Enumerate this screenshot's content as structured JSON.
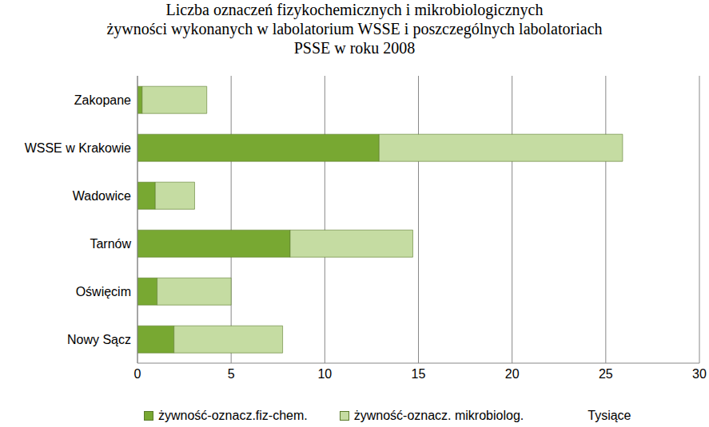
{
  "chart_data": {
    "type": "bar",
    "orientation": "horizontal",
    "stacked": true,
    "title": "Liczba oznaczeń fizykochemicznych i mikrobiologicznych\nżywności wykonanych w labolatorium WSSE i poszczególnych labolatoriach\nPSSE w roku 2008",
    "xlabel": "Tysiące",
    "categories": [
      "Zakopane",
      "WSSE w Krakowie",
      "Wadowice",
      "Tarnów",
      "Oświęcim",
      "Nowy Sącz"
    ],
    "series": [
      {
        "name": "żywność-oznacz.fiz-chem.",
        "color": "#78a832",
        "values": [
          0.25,
          12.9,
          0.95,
          8.15,
          1.05,
          1.95
        ]
      },
      {
        "name": "żywność-oznacz. mikrobiolog.",
        "color": "#c5dca2",
        "values": [
          3.45,
          13.0,
          2.1,
          6.55,
          3.95,
          5.8
        ]
      }
    ],
    "xlim": [
      0,
      30
    ],
    "xticks": [
      0,
      5,
      10,
      15,
      20,
      25,
      30
    ],
    "grid": true,
    "legend": "bottom"
  }
}
